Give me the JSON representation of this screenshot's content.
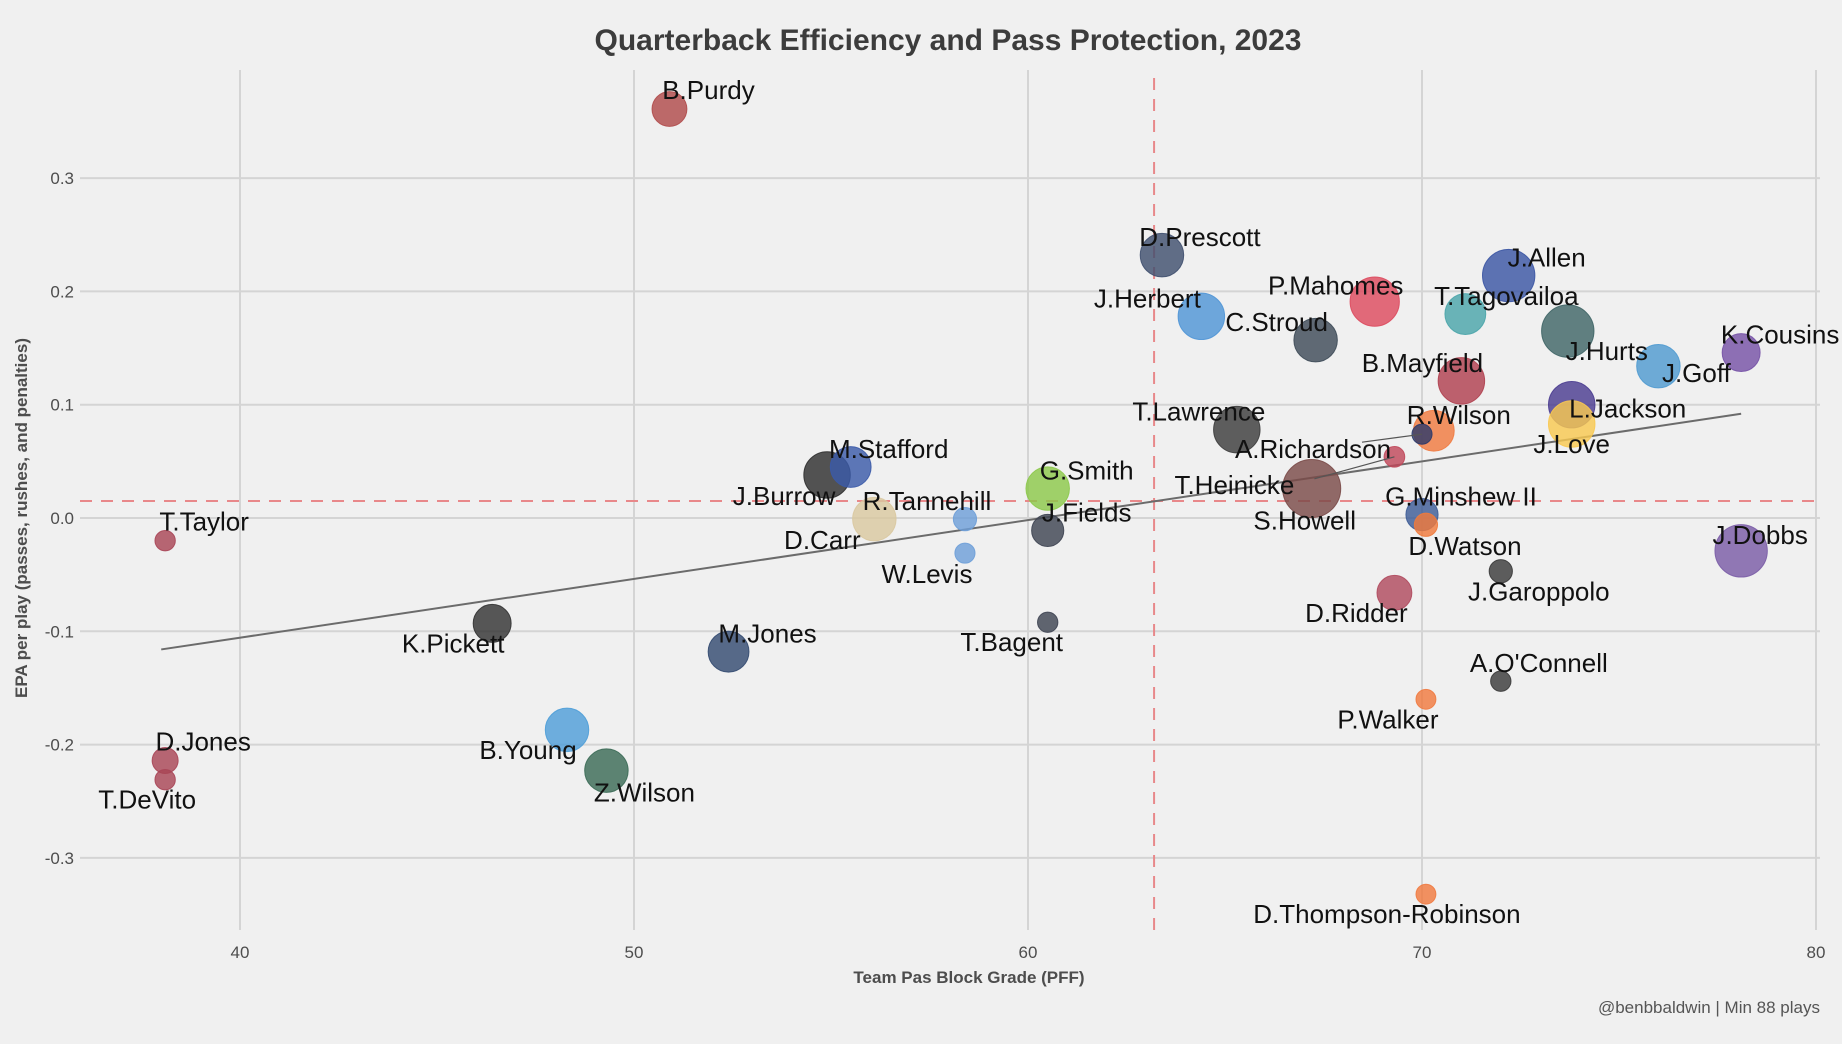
{
  "chart_data": {
    "type": "scatter",
    "title": "Quarterback Efficiency and Pass Protection, 2023",
    "xlabel": "Team Pas Block Grade (PFF)",
    "ylabel": "EPA per play (passes, rushes, and penalties)",
    "caption": "@benbbaldwin | Min 88 plays",
    "xlim": [
      36,
      80
    ],
    "ylim": [
      -0.37,
      0.39
    ],
    "x_ticks": [
      40,
      50,
      60,
      70,
      80
    ],
    "x_tick_labels": [
      "40",
      "50",
      "60",
      "70",
      "80"
    ],
    "y_ticks": [
      0.3,
      0.2,
      0.1,
      0.0,
      -0.1,
      -0.2,
      -0.3
    ],
    "y_tick_labels": [
      "0.3",
      "0.2",
      "0.1",
      "0.0",
      "-0.1",
      "-0.2",
      "-0.3"
    ],
    "grid": true,
    "legend": "none",
    "reference_lines": {
      "vertical_mean_x": 63.2,
      "horizontal_mean_y": 0.015,
      "color": "#e8888a"
    },
    "trend_line": {
      "x": [
        38.0,
        78.1
      ],
      "y": [
        -0.116,
        0.092
      ],
      "color": "#6b6b6b"
    },
    "points": [
      {
        "name": "B.Purdy",
        "x": 50.9,
        "y": 0.361,
        "plays": 270,
        "color": "#b04a4a"
      },
      {
        "name": "D.Prescott",
        "x": 63.4,
        "y": 0.232,
        "plays": 420,
        "color": "#3f4f6e"
      },
      {
        "name": "J.Herbert",
        "x": 64.4,
        "y": 0.178,
        "plays": 480,
        "color": "#4f95d6"
      },
      {
        "name": "C.Stroud",
        "x": 67.3,
        "y": 0.157,
        "plays": 420,
        "color": "#3e4b58"
      },
      {
        "name": "P.Mahomes",
        "x": 68.8,
        "y": 0.191,
        "plays": 540,
        "color": "#dd4a5e"
      },
      {
        "name": "J.Allen",
        "x": 72.2,
        "y": 0.214,
        "plays": 610,
        "color": "#3b55a3"
      },
      {
        "name": "T.Tagovailoa",
        "x": 71.1,
        "y": 0.18,
        "plays": 370,
        "color": "#4aa5aa"
      },
      {
        "name": "J.Hurts",
        "x": 73.7,
        "y": 0.165,
        "plays": 610,
        "color": "#3f6566"
      },
      {
        "name": "K.Cousins",
        "x": 78.1,
        "y": 0.146,
        "plays": 320,
        "color": "#7652a6"
      },
      {
        "name": "J.Goff",
        "x": 76.0,
        "y": 0.134,
        "plays": 420,
        "color": "#4f9ad0"
      },
      {
        "name": "B.Mayfield",
        "x": 71.0,
        "y": 0.121,
        "plays": 480,
        "color": "#b0404f"
      },
      {
        "name": "L.Jackson",
        "x": 73.8,
        "y": 0.1,
        "plays": 480,
        "color": "#4a3c90"
      },
      {
        "name": "J.Love",
        "x": 73.8,
        "y": 0.083,
        "plays": 480,
        "color": "#f8c850"
      },
      {
        "name": "R.Wilson",
        "x": 70.3,
        "y": 0.077,
        "plays": 370,
        "color": "#f07a40"
      },
      {
        "name": "T.Lawrence",
        "x": 65.3,
        "y": 0.078,
        "plays": 480,
        "color": "#3c3c3c"
      },
      {
        "name": "A.Richardson",
        "x": 70.0,
        "y": 0.074,
        "plays": 90,
        "color": "#2e3a6a"
      },
      {
        "name": "T.Heinicke",
        "x": 69.3,
        "y": 0.054,
        "plays": 95,
        "color": "#c0485a"
      },
      {
        "name": "S.Howell",
        "x": 67.2,
        "y": 0.026,
        "plays": 750,
        "color": "#7a4a48"
      },
      {
        "name": "G.Minshew II",
        "x": 70.0,
        "y": 0.003,
        "plays": 230,
        "color": "#3d5c96"
      },
      {
        "name": "D.Watson",
        "x": 70.1,
        "y": -0.006,
        "plays": 120,
        "color": "#f07a3c"
      },
      {
        "name": "J.Dobbs",
        "x": 78.1,
        "y": -0.029,
        "plays": 610,
        "color": "#7a5ca6"
      },
      {
        "name": "J.Garoppolo",
        "x": 72.0,
        "y": -0.047,
        "plays": 120,
        "color": "#3a3a3a"
      },
      {
        "name": "D.Ridder",
        "x": 69.3,
        "y": -0.066,
        "plays": 270,
        "color": "#b04a5e"
      },
      {
        "name": "A.O'Connell",
        "x": 72.0,
        "y": -0.144,
        "plays": 92,
        "color": "#3a3a3a"
      },
      {
        "name": "P.Walker",
        "x": 70.1,
        "y": -0.16,
        "plays": 88,
        "color": "#f07a40"
      },
      {
        "name": "D.Thompson-Robinson",
        "x": 70.1,
        "y": -0.332,
        "plays": 88,
        "color": "#f07a40"
      },
      {
        "name": "M.Stafford",
        "x": 55.5,
        "y": 0.045,
        "plays": 370,
        "color": "#3b5aa8"
      },
      {
        "name": "J.Burrow",
        "x": 54.9,
        "y": 0.038,
        "plays": 480,
        "color": "#2e2e2e"
      },
      {
        "name": "D.Carr",
        "x": 56.1,
        "y": -0.001,
        "plays": 420,
        "color": "#d9c8a0"
      },
      {
        "name": "R.Tannehill",
        "x": 58.4,
        "y": -0.001,
        "plays": 120,
        "color": "#6e9fd8"
      },
      {
        "name": "W.Levis",
        "x": 58.4,
        "y": -0.031,
        "plays": 90,
        "color": "#6e9fd8"
      },
      {
        "name": "G.Smith",
        "x": 60.5,
        "y": 0.026,
        "plays": 420,
        "color": "#8cc84b"
      },
      {
        "name": "J.Fields",
        "x": 60.5,
        "y": -0.011,
        "plays": 230,
        "color": "#3e4452"
      },
      {
        "name": "T.Bagent",
        "x": 60.5,
        "y": -0.092,
        "plays": 92,
        "color": "#3e4452"
      },
      {
        "name": "M.Jones",
        "x": 52.4,
        "y": -0.118,
        "plays": 370,
        "color": "#334a70"
      },
      {
        "name": "K.Pickett",
        "x": 46.4,
        "y": -0.093,
        "plays": 320,
        "color": "#333333"
      },
      {
        "name": "B.Young",
        "x": 48.3,
        "y": -0.187,
        "plays": 420,
        "color": "#4f9ed8"
      },
      {
        "name": "Z.Wilson",
        "x": 49.3,
        "y": -0.223,
        "plays": 420,
        "color": "#3a6a55"
      },
      {
        "name": "T.Taylor",
        "x": 38.1,
        "y": -0.02,
        "plays": 92,
        "color": "#a84556"
      },
      {
        "name": "D.Jones",
        "x": 38.1,
        "y": -0.214,
        "plays": 150,
        "color": "#a84556"
      },
      {
        "name": "T.DeVito",
        "x": 38.1,
        "y": -0.231,
        "plays": 92,
        "color": "#a84556"
      }
    ]
  }
}
